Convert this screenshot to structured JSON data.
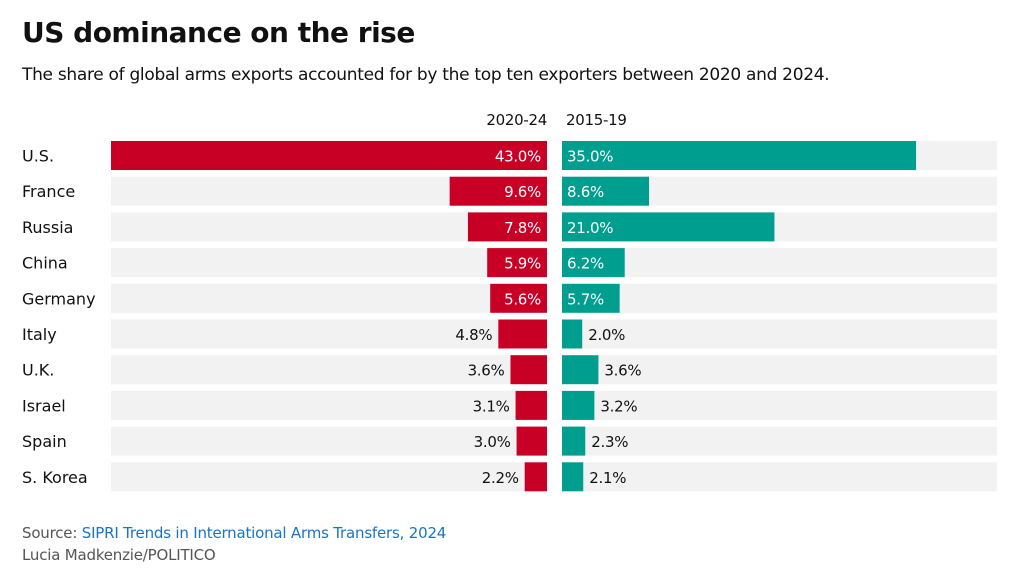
{
  "header": {
    "title": "US dominance on the rise",
    "subtitle": "The share of global arms exports accounted for by the top ten exporters between 2020 and 2024."
  },
  "footer": {
    "source_prefix": "Source: ",
    "source_link": "SIPRI Trends in International Arms Transfers, 2024",
    "credit": "Lucia Madkenzie/POLITICO"
  },
  "colors": {
    "left_bar": "#c80025",
    "right_bar": "#009e8e",
    "track": "#f2f2f2"
  },
  "chart_data": {
    "type": "bar",
    "orientation": "horizontal",
    "layout": "butterfly",
    "title": "US dominance on the rise",
    "subtitle": "The share of global arms exports accounted for by the top ten exporters between 2020 and 2024.",
    "xlabel": "",
    "ylabel": "",
    "unit": "%",
    "xlim": [
      0,
      43
    ],
    "grid": false,
    "categories": [
      "U.S.",
      "France",
      "Russia",
      "China",
      "Germany",
      "Italy",
      "U.K.",
      "Israel",
      "Spain",
      "S. Korea"
    ],
    "series": [
      {
        "name": "2020-24",
        "side": "left",
        "color": "#c80025",
        "values": [
          43.0,
          9.6,
          7.8,
          5.9,
          5.6,
          4.8,
          3.6,
          3.1,
          3.0,
          2.2
        ],
        "labels": [
          "43.0%",
          "9.6%",
          "7.8%",
          "5.9%",
          "5.6%",
          "4.8%",
          "3.6%",
          "3.1%",
          "3.0%",
          "2.2%"
        ]
      },
      {
        "name": "2015-19",
        "side": "right",
        "color": "#009e8e",
        "values": [
          35.0,
          8.6,
          21.0,
          6.2,
          5.7,
          2.0,
          3.6,
          3.2,
          2.3,
          2.1
        ],
        "labels": [
          "35.0%",
          "8.6%",
          "21.0%",
          "6.2%",
          "5.7%",
          "2.0%",
          "3.6%",
          "3.2%",
          "2.3%",
          "2.1%"
        ]
      }
    ],
    "source": "SIPRI Trends in International Arms Transfers, 2024"
  }
}
